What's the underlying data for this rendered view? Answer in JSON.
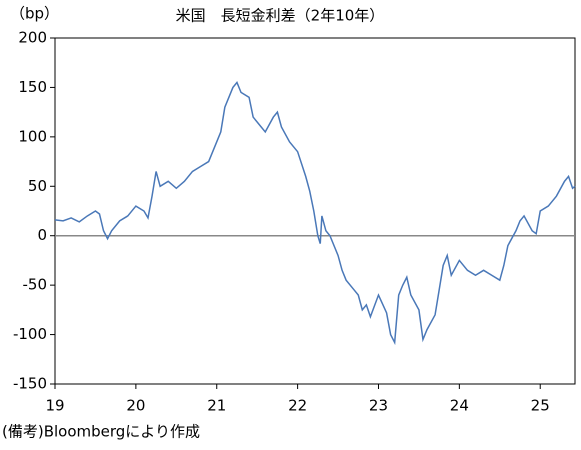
{
  "chart_data": {
    "type": "line",
    "title": "米国　長短金利差（2年10年）",
    "y_label": "（bp）",
    "note": "(備考)Bloombergにより作成",
    "x": [
      19.0,
      19.1,
      19.2,
      19.3,
      19.4,
      19.5,
      19.55,
      19.6,
      19.65,
      19.7,
      19.8,
      19.9,
      20.0,
      20.1,
      20.15,
      20.2,
      20.25,
      20.3,
      20.4,
      20.5,
      20.6,
      20.7,
      20.8,
      20.9,
      21.0,
      21.05,
      21.1,
      21.2,
      21.25,
      21.3,
      21.4,
      21.45,
      21.55,
      21.6,
      21.7,
      21.75,
      21.8,
      21.9,
      22.0,
      22.1,
      22.15,
      22.2,
      22.25,
      22.28,
      22.3,
      22.35,
      22.4,
      22.5,
      22.55,
      22.6,
      22.7,
      22.75,
      22.8,
      22.85,
      22.9,
      23.0,
      23.1,
      23.15,
      23.2,
      23.25,
      23.3,
      23.35,
      23.4,
      23.5,
      23.55,
      23.6,
      23.7,
      23.75,
      23.8,
      23.85,
      23.9,
      24.0,
      24.1,
      24.2,
      24.3,
      24.4,
      24.5,
      24.55,
      24.6,
      24.7,
      24.75,
      24.8,
      24.9,
      24.95,
      25.0,
      25.1,
      25.2,
      25.3,
      25.35,
      25.4,
      25.43
    ],
    "series": [
      {
        "color": "#4a78b8",
        "values": [
          16,
          15,
          18,
          14,
          20,
          25,
          22,
          5,
          -3,
          5,
          15,
          20,
          30,
          25,
          18,
          40,
          65,
          50,
          55,
          48,
          55,
          65,
          70,
          75,
          95,
          105,
          130,
          150,
          155,
          145,
          140,
          120,
          110,
          105,
          120,
          125,
          110,
          95,
          85,
          60,
          45,
          25,
          0,
          -8,
          20,
          5,
          0,
          -20,
          -35,
          -45,
          -55,
          -60,
          -75,
          -70,
          -82,
          -60,
          -78,
          -100,
          -108,
          -60,
          -50,
          -42,
          -60,
          -75,
          -105,
          -95,
          -80,
          -55,
          -30,
          -20,
          -40,
          -25,
          -35,
          -40,
          -35,
          -40,
          -45,
          -30,
          -10,
          5,
          15,
          20,
          5,
          2,
          25,
          30,
          40,
          55,
          60,
          48,
          50
        ]
      }
    ],
    "xlim": [
      19,
      25.43
    ],
    "xticks": [
      19,
      20,
      21,
      22,
      23,
      24,
      25
    ],
    "ylim": [
      -150,
      200
    ],
    "yticks": [
      200,
      150,
      100,
      50,
      0,
      -50,
      -100,
      -150
    ]
  }
}
